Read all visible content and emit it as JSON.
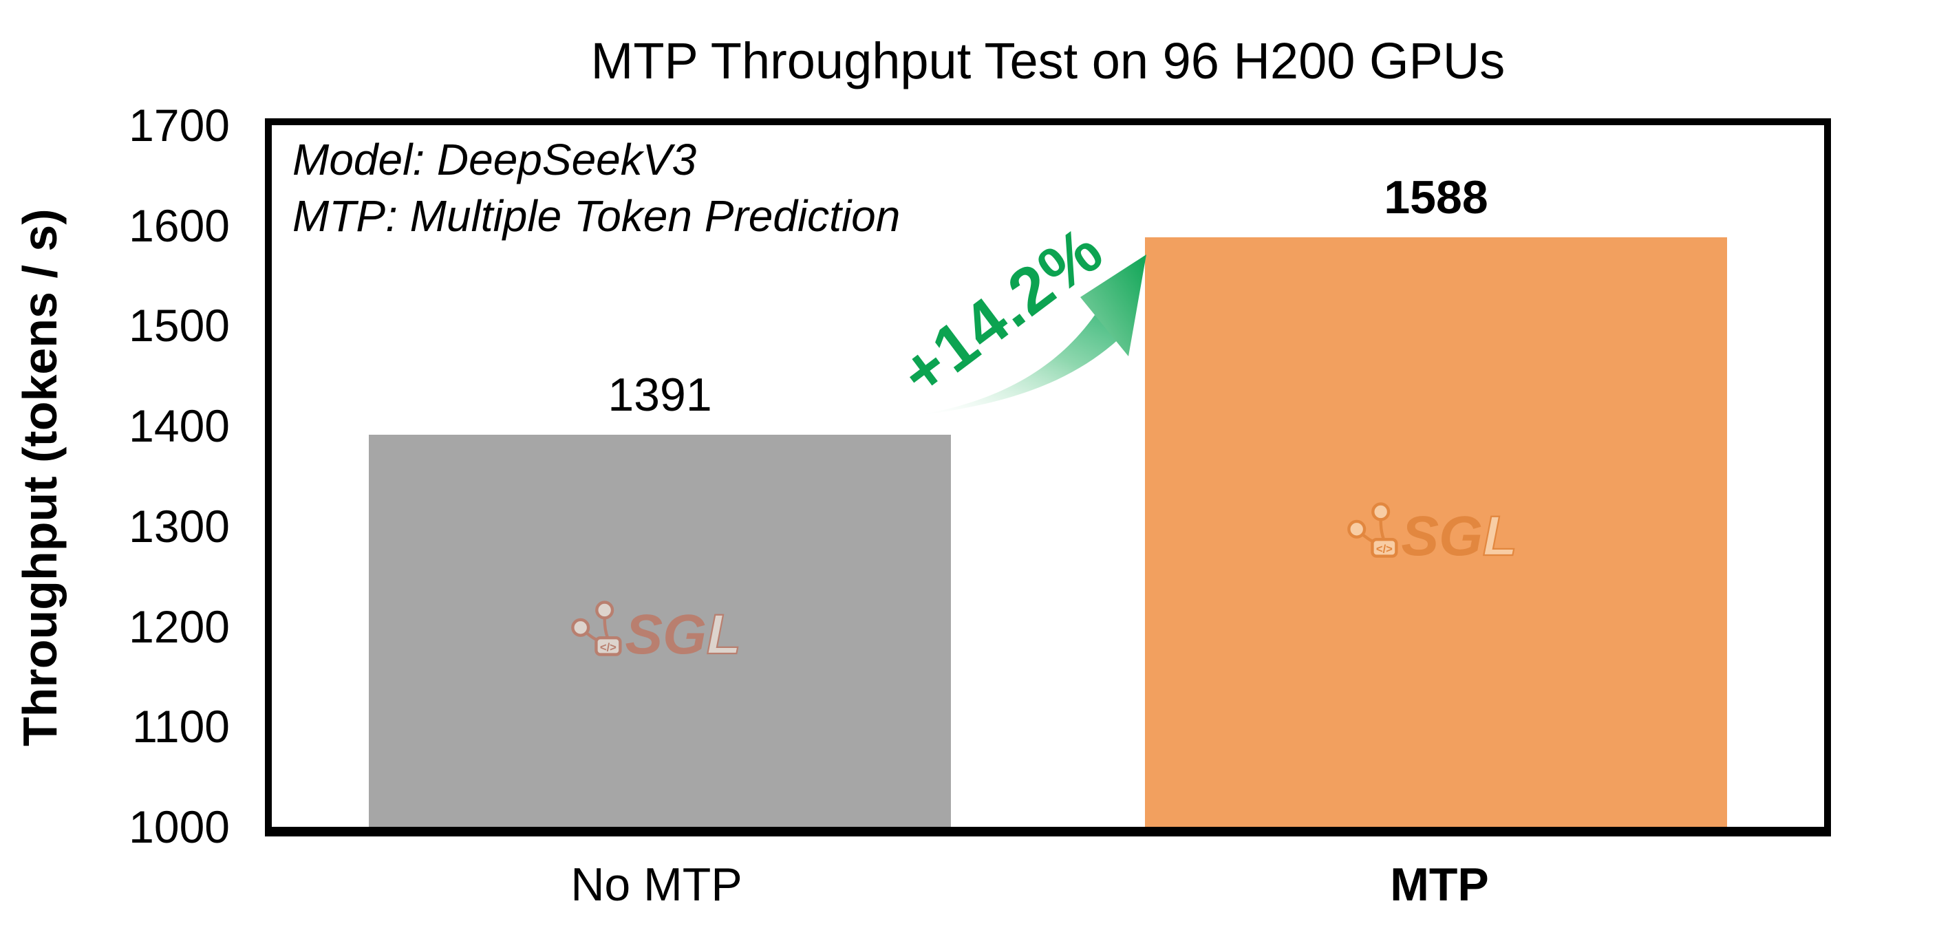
{
  "figure": {
    "title": "MTP Throughput Test on 96 H200 GPUs",
    "y_axis_label": "Throughput (tokens / s)",
    "annotation_line1": "Model: DeepSeekV3",
    "annotation_line2": "MTP: Multiple Token Prediction",
    "increase_label": "+14.2%"
  },
  "watermark": {
    "name": "sglang-logo",
    "letters_sg": "SG",
    "letter_l": "L",
    "icon_code": "</>"
  },
  "colors": {
    "bar_no_mtp": "#A6A6A6",
    "bar_mtp": "#F2A05F",
    "accent_green": "#0CA351",
    "axis_black": "#000000"
  },
  "chart_data": {
    "type": "bar",
    "categories": [
      "No MTP",
      "MTP"
    ],
    "values": [
      1391,
      1588
    ],
    "value_labels": [
      "1391",
      "1588"
    ],
    "title": "MTP Throughput Test on 96 H200 GPUs",
    "xlabel": "",
    "ylabel": "Throughput (tokens / s)",
    "ylim": [
      1000,
      1700
    ],
    "yticks": [
      1000,
      1100,
      1200,
      1300,
      1400,
      1500,
      1600,
      1700
    ],
    "bar_colors": [
      "#A6A6A6",
      "#F2A05F"
    ],
    "grid": false,
    "legend": false,
    "annotations": [
      "Model: DeepSeekV3",
      "MTP: Multiple Token Prediction",
      "+14.2%"
    ]
  }
}
